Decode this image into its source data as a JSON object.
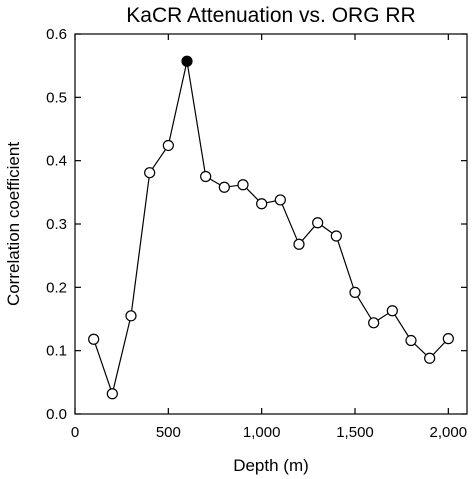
{
  "chart_data": {
    "type": "line",
    "title": "KaCR Attenuation vs. ORG RR",
    "xlabel": "Depth (m)",
    "ylabel": "Correlation coefficient",
    "xlim": [
      0,
      2100
    ],
    "ylim": [
      0,
      0.6
    ],
    "x_ticks": [
      0,
      500,
      1000,
      1500,
      2000
    ],
    "x_tick_labels": [
      "0",
      "500",
      "1,000",
      "1,500",
      "2,000"
    ],
    "y_ticks": [
      0.0,
      0.1,
      0.2,
      0.3,
      0.4,
      0.5,
      0.6
    ],
    "y_tick_labels": [
      "0.0",
      "0.1",
      "0.2",
      "0.3",
      "0.4",
      "0.5",
      "0.6"
    ],
    "grid": false,
    "series": [
      {
        "x": [
          100,
          200,
          300,
          400,
          500,
          600,
          700,
          800,
          900,
          1000,
          1100,
          1200,
          1300,
          1400,
          1500,
          1600,
          1700,
          1800,
          1900,
          2000
        ],
        "y": [
          0.118,
          0.032,
          0.155,
          0.381,
          0.424,
          0.557,
          0.375,
          0.358,
          0.362,
          0.332,
          0.338,
          0.268,
          0.302,
          0.281,
          0.192,
          0.144,
          0.163,
          0.116,
          0.088,
          0.119
        ],
        "highlight_index": 5
      }
    ],
    "colors": {
      "marker_fill": "#ffffff",
      "highlight_fill": "#000000",
      "line": "#000000"
    }
  }
}
